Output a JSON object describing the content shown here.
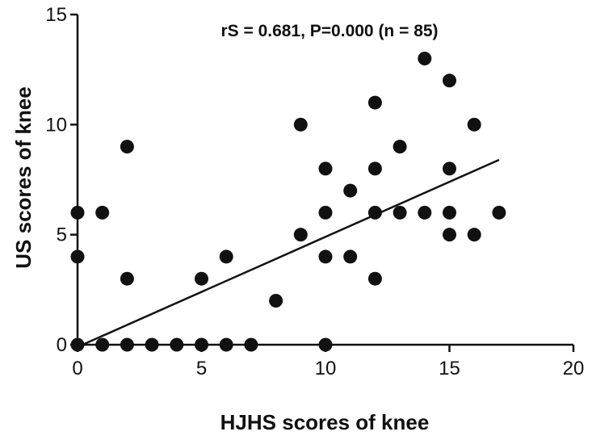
{
  "chart_data": {
    "type": "scatter",
    "xlabel": "HJHS scores of knee",
    "ylabel": "US scores of knee",
    "annotation": "rS = 0.681, P=0.000 (n = 85)",
    "xlim": [
      0,
      20
    ],
    "ylim": [
      0,
      15
    ],
    "x_ticks": [
      "0",
      "5",
      "10",
      "15",
      "20"
    ],
    "y_ticks": [
      "0",
      "5",
      "10",
      "15"
    ],
    "grid": false,
    "points": [
      {
        "x": 0,
        "y": 0
      },
      {
        "x": 0,
        "y": 4
      },
      {
        "x": 0,
        "y": 6
      },
      {
        "x": 1,
        "y": 0
      },
      {
        "x": 1,
        "y": 6
      },
      {
        "x": 2,
        "y": 0
      },
      {
        "x": 2,
        "y": 3
      },
      {
        "x": 2,
        "y": 9
      },
      {
        "x": 3,
        "y": 0
      },
      {
        "x": 4,
        "y": 0
      },
      {
        "x": 5,
        "y": 0
      },
      {
        "x": 5,
        "y": 3
      },
      {
        "x": 6,
        "y": 0
      },
      {
        "x": 6,
        "y": 4
      },
      {
        "x": 7,
        "y": 0
      },
      {
        "x": 8,
        "y": 2
      },
      {
        "x": 9,
        "y": 5
      },
      {
        "x": 9,
        "y": 10
      },
      {
        "x": 10,
        "y": 0
      },
      {
        "x": 10,
        "y": 4
      },
      {
        "x": 10,
        "y": 6
      },
      {
        "x": 10,
        "y": 8
      },
      {
        "x": 11,
        "y": 4
      },
      {
        "x": 11,
        "y": 7
      },
      {
        "x": 12,
        "y": 3
      },
      {
        "x": 12,
        "y": 6
      },
      {
        "x": 12,
        "y": 8
      },
      {
        "x": 12,
        "y": 11
      },
      {
        "x": 13,
        "y": 6
      },
      {
        "x": 13,
        "y": 9
      },
      {
        "x": 14,
        "y": 6
      },
      {
        "x": 14,
        "y": 13
      },
      {
        "x": 15,
        "y": 5
      },
      {
        "x": 15,
        "y": 6
      },
      {
        "x": 15,
        "y": 8
      },
      {
        "x": 15,
        "y": 12
      },
      {
        "x": 16,
        "y": 5
      },
      {
        "x": 16,
        "y": 10
      },
      {
        "x": 17,
        "y": 6
      }
    ],
    "fit_line": {
      "x1": 0,
      "y1": -0.1,
      "x2": 17,
      "y2": 8.4
    },
    "colors": {
      "points": "#111111",
      "axes": "#111111",
      "fit_line": "#111111"
    }
  }
}
